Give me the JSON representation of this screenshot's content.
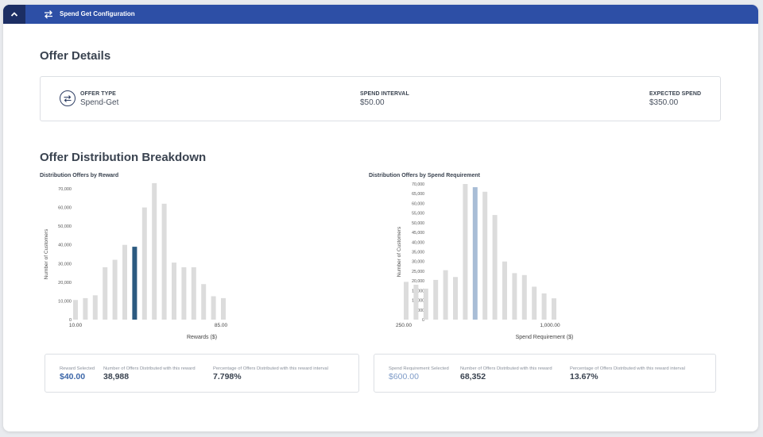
{
  "header": {
    "title": "Spend Get Configuration"
  },
  "offer_details": {
    "title": "Offer Details",
    "offer_type_label": "OFFER TYPE",
    "offer_type_value": "Spend-Get",
    "spend_interval_label": "SPEND INTERVAL",
    "spend_interval_value": "$50.00",
    "expected_spend_label": "EXPECTED SPEND",
    "expected_spend_value": "$350.00"
  },
  "breakdown": {
    "title": "Offer Distribution Breakdown"
  },
  "colors": {
    "header": "#2d4fa6",
    "bar": "#dcdcdc",
    "selected_reward": "#2c5a80",
    "selected_spend": "#a8bdd6",
    "accent_value": "#3c66a8"
  },
  "reward_stats": {
    "selected_label": "Reward Selected",
    "selected_value": "$40.00",
    "count_label": "Number of Offers Distributed with this reward",
    "count_value": "38,988",
    "pct_label": "Percentage of Offers Distributed with this reward interval",
    "pct_value": "7.798%"
  },
  "spend_stats": {
    "selected_label": "Spend Requirement Selected",
    "selected_value": "$600.00",
    "count_label": "Number of Offers Distributed with this reward",
    "count_value": "68,352",
    "pct_label": "Percentage of Offers Distributed with this reward interval",
    "pct_value": "13.67%"
  },
  "chart_data": [
    {
      "type": "bar",
      "title": "Distribution Offers by Reward",
      "xlabel": "Rewards ($)",
      "ylabel": "Number of Customers",
      "x_tick_labels": [
        "10.00",
        "85.00"
      ],
      "y_ticks": [
        "0",
        "10,000",
        "20,000",
        "30,000",
        "40,000",
        "50,000",
        "60,000",
        "70,000"
      ],
      "ylim": [
        0,
        70000
      ],
      "values": [
        10500,
        11500,
        13000,
        28000,
        32000,
        40000,
        38988,
        60000,
        73000,
        62000,
        30500,
        28000,
        28000,
        19000,
        12500,
        11500
      ],
      "selected_index": 6,
      "grid": false
    },
    {
      "type": "bar",
      "title": "Distribution Offers by Spend Requirement",
      "xlabel": "Spend Requirement ($)",
      "ylabel": "Number of Customers",
      "x_tick_labels": [
        "250.00",
        "1,000.00"
      ],
      "y_ticks": [
        "0",
        "5,000",
        "10,000",
        "15,000",
        "20,000",
        "25,000",
        "30,000",
        "35,000",
        "40,000",
        "45,000",
        "50,000",
        "55,000",
        "60,000",
        "65,000",
        "70,000"
      ],
      "ylim": [
        0,
        70000
      ],
      "values": [
        19500,
        18000,
        16000,
        20500,
        25500,
        22000,
        70000,
        68352,
        66000,
        54000,
        30000,
        24000,
        23000,
        17000,
        13500,
        11000
      ],
      "selected_index": 7,
      "grid": false
    }
  ]
}
